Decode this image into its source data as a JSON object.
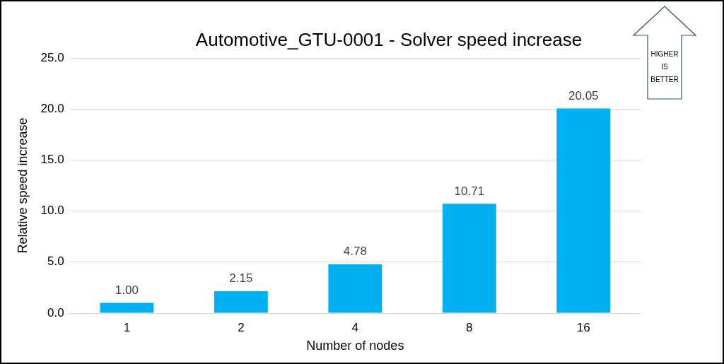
{
  "chart_data": {
    "type": "bar",
    "title": "Automotive_GTU-0001 - Solver speed increase",
    "x_label": "Number of nodes",
    "y_label": "Relative speed increase",
    "categories": [
      "1",
      "2",
      "4",
      "8",
      "16"
    ],
    "values": [
      1,
      2.15,
      4.78,
      10.71,
      20.05
    ],
    "value_labels": [
      "1.00",
      "2.15",
      "4.78",
      "10.71",
      "20.05"
    ],
    "color": "#00b0f0",
    "ylim": [
      0,
      25
    ],
    "yticks": [
      {
        "value": 0,
        "label": "0.0"
      },
      {
        "value": 5,
        "label": "5.0"
      },
      {
        "value": 10,
        "label": "10.0"
      },
      {
        "value": 15,
        "label": "15.0"
      },
      {
        "value": 20,
        "label": "20.0"
      },
      {
        "value": 25,
        "label": "25.0"
      }
    ],
    "grid": true,
    "data_labels": true,
    "annotation": "HIGHER IS BETTER"
  }
}
